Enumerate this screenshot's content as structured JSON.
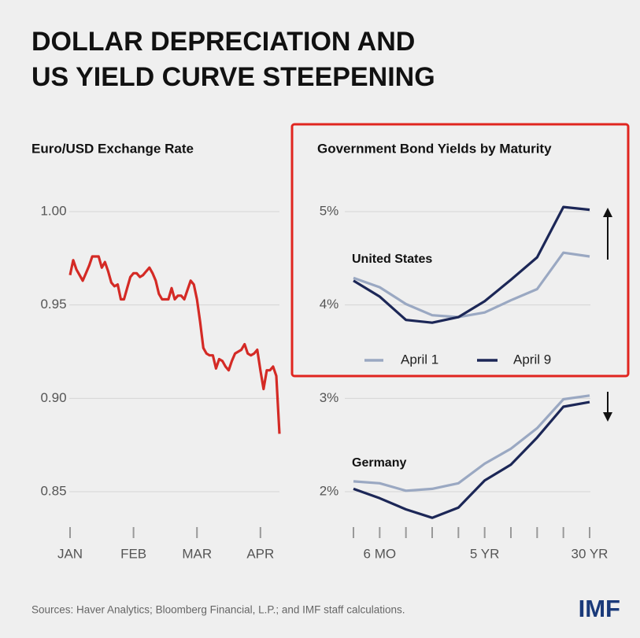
{
  "header": {
    "title": [
      "DOLLAR DEPRECIATION AND",
      "US YIELD CURVE STEEPENING"
    ]
  },
  "chart_data": [
    {
      "type": "line",
      "title": "Euro/USD Exchange Rate",
      "categories": [
        "JAN",
        null,
        null,
        null,
        null,
        null,
        null,
        null,
        null,
        null,
        null,
        null,
        null,
        null,
        null,
        null,
        null,
        null,
        null,
        null,
        "FEB",
        null,
        null,
        null,
        null,
        null,
        null,
        null,
        null,
        null,
        null,
        null,
        null,
        null,
        null,
        null,
        null,
        null,
        null,
        null,
        "MAR",
        null,
        null,
        null,
        null,
        null,
        null,
        null,
        null,
        null,
        null,
        null,
        null,
        null,
        null,
        null,
        null,
        null,
        null,
        null,
        "APR",
        null,
        null,
        null,
        null,
        null,
        null
      ],
      "series": [
        {
          "name": "Euro/USD",
          "color": "#d42a25",
          "values": [
            0.966,
            0.974,
            0.969,
            0.966,
            0.963,
            0.967,
            0.971,
            0.976,
            0.976,
            0.976,
            0.97,
            0.973,
            0.968,
            0.962,
            0.96,
            0.961,
            0.953,
            0.953,
            0.959,
            0.965,
            0.967,
            0.967,
            0.965,
            0.966,
            0.968,
            0.97,
            0.967,
            0.963,
            0.956,
            0.953,
            0.953,
            0.953,
            0.959,
            0.953,
            0.955,
            0.955,
            0.953,
            0.958,
            0.963,
            0.961,
            0.953,
            0.941,
            0.927,
            0.924,
            0.923,
            0.923,
            0.916,
            0.921,
            0.92,
            0.917,
            0.915,
            0.92,
            0.924,
            0.925,
            0.926,
            0.929,
            0.924,
            0.923,
            0.924,
            0.926,
            0.915,
            0.905,
            0.915,
            0.915,
            0.917,
            0.912,
            0.881
          ]
        }
      ],
      "ylim": [
        0.85,
        1.0
      ],
      "yticks": [
        {
          "value": 0.85,
          "label": "0.85"
        },
        {
          "value": 0.9,
          "label": "0.90"
        },
        {
          "value": 0.95,
          "label": "0.95"
        },
        {
          "value": 1.0,
          "label": "1.00"
        }
      ],
      "grid": true
    },
    {
      "type": "line",
      "title": "Government Bond Yields by Maturity",
      "categories": [
        null,
        "6 MO",
        null,
        null,
        null,
        "5 YR",
        null,
        null,
        null,
        "30 YR"
      ],
      "annotations": [
        "United States",
        "Germany"
      ],
      "series": [
        {
          "name": "April 1",
          "color": "#9aa8c2",
          "values": [
            4.29,
            4.19,
            4.01,
            3.89,
            3.87,
            3.92,
            4.05,
            4.17,
            4.56,
            4.52
          ]
        },
        {
          "name": "April 9",
          "color": "#1c2757",
          "values": [
            4.26,
            4.09,
            3.84,
            3.81,
            3.87,
            4.04,
            4.27,
            4.51,
            5.05,
            5.02
          ]
        },
        {
          "name": "April 1",
          "color": "#9aa8c2",
          "values": [
            2.11,
            2.09,
            2.01,
            2.03,
            2.09,
            2.3,
            2.46,
            2.68,
            2.99,
            3.03
          ]
        },
        {
          "name": "April 9",
          "color": "#1c2757",
          "values": [
            2.03,
            1.93,
            1.81,
            1.72,
            1.83,
            2.12,
            2.29,
            2.58,
            2.91,
            2.96
          ]
        }
      ],
      "ylim": [
        2,
        5
      ],
      "yticks": [
        {
          "value": 2,
          "label": "2%"
        },
        {
          "value": 3,
          "label": "3%"
        },
        {
          "value": 4,
          "label": "4%"
        },
        {
          "value": 5,
          "label": "5%"
        }
      ],
      "grid": true
    }
  ],
  "footer": {
    "source": "Sources: Haver Analytics; Bloomberg Financial, L.P.; and IMF staff calculations.",
    "logo": "IMF"
  }
}
